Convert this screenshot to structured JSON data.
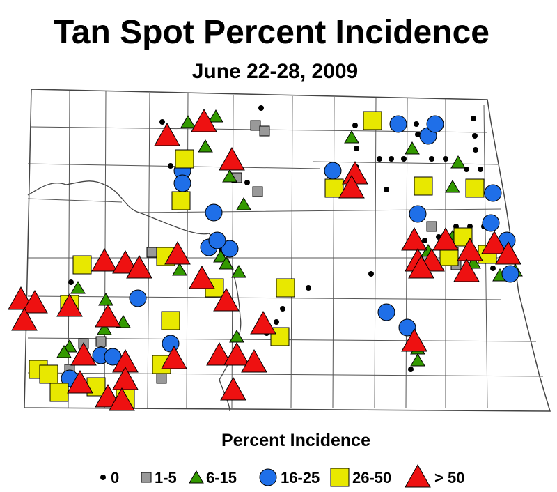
{
  "title": "Tan Spot Percent Incidence",
  "subtitle": "June 22-28, 2009",
  "legend": {
    "title": "Percent Incidence",
    "items": [
      {
        "label": "0",
        "color": "#000000"
      },
      {
        "label": "1-5",
        "color": "#999999"
      },
      {
        "label": "6-15",
        "color": "#339900"
      },
      {
        "label": "16-25",
        "color": "#1f6fe8"
      },
      {
        "label": "26-50",
        "color": "#e8e800"
      },
      {
        "label": "> 50",
        "color": "#ee1111"
      }
    ]
  }
}
